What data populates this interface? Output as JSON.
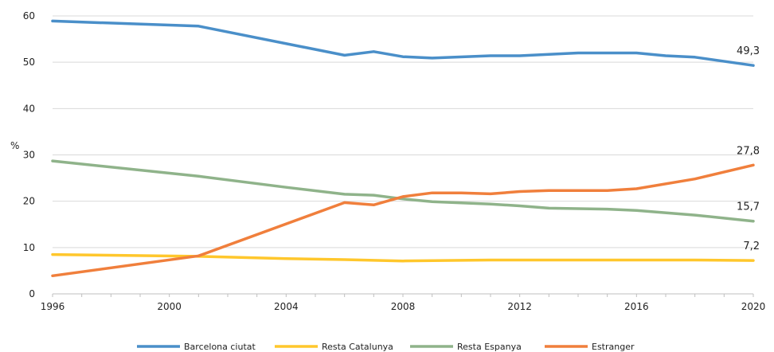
{
  "chart_data": {
    "type": "line",
    "title": "",
    "xlabel": "",
    "ylabel": "%",
    "xlim": [
      1996,
      2020
    ],
    "ylim": [
      0,
      60
    ],
    "x_ticks": [
      1996,
      2000,
      2004,
      2008,
      2012,
      2016,
      2020
    ],
    "x_tick_labels": [
      "1996",
      "2000",
      "2004",
      "2008",
      "2012",
      "2016",
      "2020"
    ],
    "y_ticks": [
      0,
      10,
      20,
      30,
      40,
      50,
      60
    ],
    "y_tick_labels": [
      "0",
      "10",
      "20",
      "30",
      "40",
      "50",
      "60"
    ],
    "grid": "horizontal",
    "legend_position": "bottom",
    "series": [
      {
        "name": "Barcelona ciutat",
        "color": "#4a8fc9",
        "end_label": "49,3",
        "points": [
          [
            1996,
            58.9
          ],
          [
            2001,
            57.8
          ],
          [
            2006,
            51.5
          ],
          [
            2007,
            52.3
          ],
          [
            2008,
            51.2
          ],
          [
            2009,
            50.9
          ],
          [
            2011,
            51.4
          ],
          [
            2012,
            51.4
          ],
          [
            2013,
            51.7
          ],
          [
            2014,
            52.0
          ],
          [
            2016,
            52.0
          ],
          [
            2017,
            51.4
          ],
          [
            2018,
            51.1
          ],
          [
            2020,
            49.3
          ]
        ]
      },
      {
        "name": "Resta Catalunya",
        "color": "#ffc72c",
        "end_label": "7,2",
        "points": [
          [
            1996,
            8.5
          ],
          [
            2001,
            8.1
          ],
          [
            2004,
            7.6
          ],
          [
            2006,
            7.4
          ],
          [
            2008,
            7.1
          ],
          [
            2011,
            7.3
          ],
          [
            2016,
            7.3
          ],
          [
            2018,
            7.3
          ],
          [
            2020,
            7.2
          ]
        ]
      },
      {
        "name": "Resta Espanya",
        "color": "#8fb38a",
        "end_label": "15,7",
        "points": [
          [
            1996,
            28.7
          ],
          [
            2001,
            25.4
          ],
          [
            2004,
            23.0
          ],
          [
            2006,
            21.5
          ],
          [
            2007,
            21.3
          ],
          [
            2008,
            20.5
          ],
          [
            2009,
            19.9
          ],
          [
            2011,
            19.4
          ],
          [
            2012,
            19.0
          ],
          [
            2013,
            18.5
          ],
          [
            2015,
            18.3
          ],
          [
            2016,
            18.0
          ],
          [
            2018,
            17.0
          ],
          [
            2020,
            15.7
          ]
        ]
      },
      {
        "name": "Estranger",
        "color": "#f07f3c",
        "end_label": "27,8",
        "points": [
          [
            1996,
            3.9
          ],
          [
            2001,
            8.2
          ],
          [
            2006,
            19.7
          ],
          [
            2007,
            19.2
          ],
          [
            2008,
            21.0
          ],
          [
            2009,
            21.8
          ],
          [
            2010,
            21.8
          ],
          [
            2011,
            21.6
          ],
          [
            2012,
            22.1
          ],
          [
            2013,
            22.3
          ],
          [
            2015,
            22.3
          ],
          [
            2016,
            22.7
          ],
          [
            2018,
            24.8
          ],
          [
            2020,
            27.8
          ]
        ]
      }
    ]
  }
}
